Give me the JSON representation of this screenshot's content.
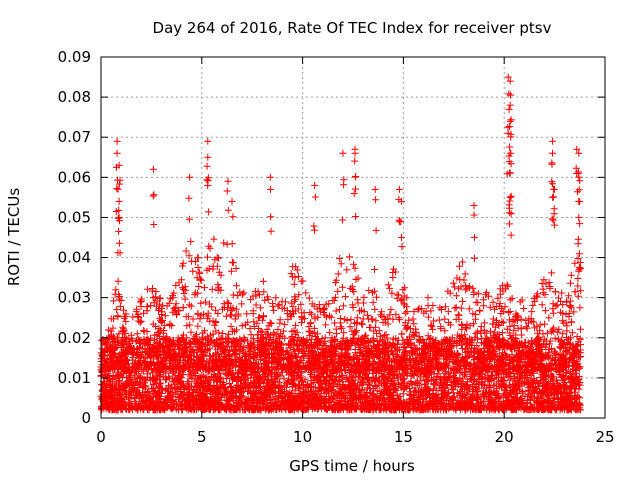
{
  "chart_data": {
    "type": "scatter",
    "title": "Day 264 of 2016, Rate Of TEC Index for receiver ptsv",
    "xlabel": "GPS time / hours",
    "ylabel": "ROTI / TECUs",
    "xlim": [
      0,
      25
    ],
    "ylim": [
      0,
      0.09
    ],
    "x_ticks": [
      0,
      5,
      10,
      15,
      20,
      25
    ],
    "x_tick_labels": [
      "0",
      "5",
      "10",
      "15",
      "20",
      "25"
    ],
    "y_ticks": [
      0,
      0.01,
      0.02,
      0.03,
      0.04,
      0.05,
      0.06,
      0.07,
      0.08,
      0.09
    ],
    "y_tick_labels": [
      "0",
      "0.01",
      "0.02",
      "0.03",
      "0.04",
      "0.05",
      "0.06",
      "0.07",
      "0.08",
      "0.09"
    ],
    "grid": true,
    "marker": "+",
    "color": "#ff0000",
    "series": [
      {
        "name": "ROTI",
        "data_range_x": [
          0,
          23.8
        ],
        "baseline_range_y": [
          0.002,
          0.02
        ],
        "envelope": [
          [
            0.0,
            0.018
          ],
          [
            0.5,
            0.025
          ],
          [
            0.8,
            0.045
          ],
          [
            1.0,
            0.03
          ],
          [
            1.5,
            0.025
          ],
          [
            2.0,
            0.03
          ],
          [
            2.5,
            0.035
          ],
          [
            3.0,
            0.03
          ],
          [
            3.5,
            0.03
          ],
          [
            4.0,
            0.04
          ],
          [
            4.5,
            0.045
          ],
          [
            5.0,
            0.04
          ],
          [
            5.5,
            0.045
          ],
          [
            6.0,
            0.045
          ],
          [
            6.5,
            0.04
          ],
          [
            7.0,
            0.035
          ],
          [
            7.5,
            0.03
          ],
          [
            8.0,
            0.035
          ],
          [
            8.5,
            0.03
          ],
          [
            9.0,
            0.03
          ],
          [
            9.5,
            0.04
          ],
          [
            10.0,
            0.035
          ],
          [
            10.5,
            0.03
          ],
          [
            11.0,
            0.028
          ],
          [
            11.5,
            0.03
          ],
          [
            12.0,
            0.045
          ],
          [
            12.5,
            0.04
          ],
          [
            13.0,
            0.03
          ],
          [
            13.5,
            0.035
          ],
          [
            14.0,
            0.03
          ],
          [
            14.5,
            0.04
          ],
          [
            15.0,
            0.035
          ],
          [
            15.5,
            0.03
          ],
          [
            16.0,
            0.03
          ],
          [
            16.5,
            0.03
          ],
          [
            17.0,
            0.03
          ],
          [
            17.5,
            0.035
          ],
          [
            18.0,
            0.04
          ],
          [
            18.5,
            0.035
          ],
          [
            19.0,
            0.035
          ],
          [
            19.5,
            0.03
          ],
          [
            20.0,
            0.035
          ],
          [
            20.5,
            0.03
          ],
          [
            21.0,
            0.03
          ],
          [
            21.5,
            0.03
          ],
          [
            22.0,
            0.035
          ],
          [
            22.5,
            0.035
          ],
          [
            23.0,
            0.03
          ],
          [
            23.5,
            0.04
          ],
          [
            23.8,
            0.04
          ]
        ],
        "spikes": [
          [
            0.8,
            0.069
          ],
          [
            0.8,
            0.066
          ],
          [
            0.9,
            0.063
          ],
          [
            0.9,
            0.054
          ],
          [
            0.9,
            0.05
          ],
          [
            2.6,
            0.062
          ],
          [
            4.4,
            0.06
          ],
          [
            5.3,
            0.069
          ],
          [
            5.3,
            0.065
          ],
          [
            6.3,
            0.059
          ],
          [
            6.5,
            0.054
          ],
          [
            8.4,
            0.06
          ],
          [
            10.6,
            0.058
          ],
          [
            12.0,
            0.066
          ],
          [
            12.6,
            0.067
          ],
          [
            12.6,
            0.066
          ],
          [
            13.6,
            0.057
          ],
          [
            14.8,
            0.057
          ],
          [
            14.9,
            0.054
          ],
          [
            18.5,
            0.053
          ],
          [
            20.2,
            0.085
          ],
          [
            20.3,
            0.084
          ],
          [
            20.3,
            0.078
          ],
          [
            20.3,
            0.074
          ],
          [
            20.2,
            0.071
          ],
          [
            20.3,
            0.066
          ],
          [
            20.3,
            0.061
          ],
          [
            20.3,
            0.055
          ],
          [
            22.4,
            0.069
          ],
          [
            22.4,
            0.066
          ],
          [
            22.5,
            0.057
          ],
          [
            22.4,
            0.055
          ],
          [
            23.6,
            0.067
          ],
          [
            23.7,
            0.066
          ],
          [
            23.7,
            0.06
          ],
          [
            23.7,
            0.054
          ],
          [
            23.7,
            0.05
          ]
        ]
      }
    ]
  }
}
